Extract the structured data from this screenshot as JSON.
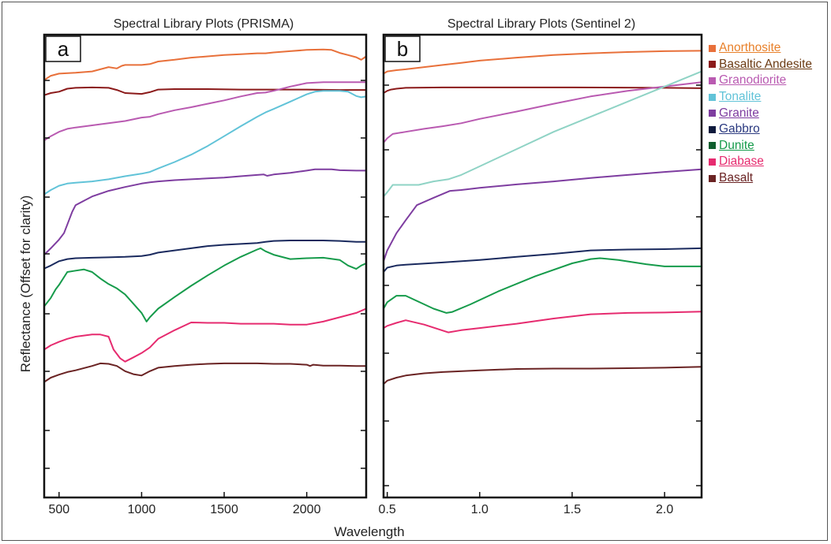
{
  "chart_data": [
    {
      "type": "line",
      "title": "Spectral Library Plots (PRISMA)",
      "panel_label": "a",
      "xlabel": "Wavelength",
      "ylabel": "Reflectance (Offset for clarity)",
      "xlim": [
        410,
        2360
      ],
      "ylim": [
        0,
        10
      ],
      "xticks": [
        500,
        1000,
        1500,
        2000
      ],
      "ytick_count": 8,
      "grid": false,
      "series": [
        {
          "name": "Anorthosite",
          "color": "#e8703a",
          "x": [
            410,
            450,
            500,
            600,
            700,
            750,
            800,
            850,
            880,
            900,
            1000,
            1050,
            1100,
            1200,
            1300,
            1400,
            1500,
            1600,
            1700,
            1750,
            1800,
            1900,
            2000,
            2100,
            2150,
            2200,
            2250,
            2300,
            2330,
            2360
          ],
          "y": [
            9.35,
            9.45,
            9.5,
            9.52,
            9.55,
            9.6,
            9.65,
            9.62,
            9.68,
            9.7,
            9.7,
            9.72,
            9.78,
            9.82,
            9.87,
            9.9,
            9.93,
            9.95,
            9.97,
            9.97,
            9.99,
            10.02,
            10.05,
            10.06,
            10.05,
            9.98,
            9.93,
            9.88,
            9.82,
            9.9
          ]
        },
        {
          "name": "Basaltic Andesite",
          "color": "#8b1a1a",
          "x": [
            410,
            450,
            500,
            550,
            600,
            700,
            800,
            850,
            900,
            1000,
            1050,
            1100,
            1200,
            1400,
            1600,
            1800,
            2000,
            2200,
            2360
          ],
          "y": [
            9.0,
            9.05,
            9.08,
            9.15,
            9.17,
            9.18,
            9.17,
            9.12,
            9.05,
            9.03,
            9.07,
            9.13,
            9.14,
            9.14,
            9.13,
            9.13,
            9.13,
            9.12,
            9.12
          ]
        },
        {
          "name": "Granodiorite",
          "color": "#b95ab1",
          "x": [
            410,
            450,
            500,
            550,
            600,
            700,
            800,
            900,
            1000,
            1050,
            1100,
            1200,
            1300,
            1400,
            1500,
            1600,
            1700,
            1750,
            1800,
            1900,
            2000,
            2100,
            2200,
            2300,
            2360
          ],
          "y": [
            7.95,
            8.05,
            8.15,
            8.22,
            8.25,
            8.3,
            8.35,
            8.4,
            8.48,
            8.5,
            8.56,
            8.65,
            8.72,
            8.8,
            8.88,
            8.97,
            9.05,
            9.06,
            9.1,
            9.2,
            9.28,
            9.3,
            9.3,
            9.3,
            9.3
          ]
        },
        {
          "name": "Tonalite",
          "color": "#61c3d8",
          "x": [
            410,
            450,
            500,
            550,
            600,
            700,
            800,
            900,
            1000,
            1050,
            1100,
            1200,
            1300,
            1400,
            1500,
            1600,
            1700,
            1750,
            1800,
            1900,
            2000,
            2050,
            2100,
            2200,
            2250,
            2300,
            2330,
            2360
          ],
          "y": [
            6.7,
            6.8,
            6.9,
            6.95,
            6.97,
            7.0,
            7.05,
            7.12,
            7.18,
            7.22,
            7.3,
            7.45,
            7.62,
            7.82,
            8.05,
            8.28,
            8.5,
            8.6,
            8.68,
            8.85,
            9.02,
            9.08,
            9.1,
            9.1,
            9.08,
            8.98,
            8.95,
            8.97
          ]
        },
        {
          "name": "Granite",
          "color": "#7e3da0",
          "x": [
            410,
            450,
            500,
            530,
            550,
            580,
            600,
            650,
            700,
            800,
            900,
            1000,
            1050,
            1100,
            1200,
            1300,
            1400,
            1500,
            1600,
            1700,
            1740,
            1760,
            1800,
            1900,
            2000,
            2050,
            2100,
            2150,
            2200,
            2300,
            2360
          ],
          "y": [
            5.3,
            5.45,
            5.65,
            5.8,
            6.0,
            6.3,
            6.45,
            6.55,
            6.65,
            6.78,
            6.87,
            6.95,
            6.98,
            7.0,
            7.03,
            7.05,
            7.07,
            7.09,
            7.12,
            7.15,
            7.16,
            7.13,
            7.16,
            7.2,
            7.25,
            7.28,
            7.28,
            7.28,
            7.26,
            7.25,
            7.25
          ]
        },
        {
          "name": "Gabbro",
          "color": "#1a2a5e",
          "x": [
            410,
            450,
            500,
            550,
            600,
            700,
            800,
            900,
            1000,
            1050,
            1100,
            1200,
            1300,
            1400,
            1500,
            1600,
            1700,
            1750,
            1800,
            1900,
            2000,
            2100,
            2200,
            2300,
            2360
          ],
          "y": [
            4.98,
            5.05,
            5.15,
            5.2,
            5.22,
            5.23,
            5.24,
            5.25,
            5.27,
            5.3,
            5.35,
            5.4,
            5.45,
            5.5,
            5.53,
            5.55,
            5.57,
            5.6,
            5.62,
            5.63,
            5.63,
            5.63,
            5.62,
            5.6,
            5.6
          ]
        },
        {
          "name": "Dunite",
          "color": "#169b4b",
          "x": [
            410,
            450,
            480,
            500,
            550,
            600,
            650,
            700,
            750,
            800,
            850,
            900,
            1000,
            1030,
            1050,
            1100,
            1200,
            1300,
            1400,
            1500,
            1600,
            1700,
            1720,
            1750,
            1800,
            1900,
            2000,
            2100,
            2200,
            2250,
            2300,
            2330,
            2360
          ],
          "y": [
            4.1,
            4.3,
            4.5,
            4.6,
            4.9,
            4.93,
            4.96,
            4.9,
            4.75,
            4.62,
            4.52,
            4.38,
            3.95,
            3.75,
            3.85,
            4.05,
            4.32,
            4.58,
            4.82,
            5.05,
            5.25,
            5.42,
            5.45,
            5.38,
            5.3,
            5.2,
            5.22,
            5.23,
            5.18,
            5.05,
            4.97,
            5.05,
            5.1
          ]
        },
        {
          "name": "Diabase",
          "color": "#e62b6f",
          "x": [
            410,
            450,
            500,
            550,
            600,
            700,
            750,
            800,
            830,
            870,
            900,
            950,
            1000,
            1050,
            1100,
            1200,
            1300,
            1400,
            1500,
            1600,
            1700,
            1800,
            1900,
            2000,
            2100,
            2200,
            2300,
            2360
          ],
          "y": [
            3.1,
            3.2,
            3.28,
            3.35,
            3.4,
            3.45,
            3.45,
            3.4,
            3.1,
            2.9,
            2.82,
            2.92,
            3.02,
            3.15,
            3.35,
            3.55,
            3.73,
            3.72,
            3.72,
            3.7,
            3.7,
            3.7,
            3.68,
            3.68,
            3.75,
            3.85,
            3.95,
            4.05
          ]
        },
        {
          "name": "Basalt",
          "color": "#6a2323",
          "x": [
            410,
            450,
            500,
            550,
            600,
            700,
            750,
            800,
            850,
            900,
            950,
            1000,
            1050,
            1100,
            1200,
            1300,
            1400,
            1500,
            1600,
            1700,
            1800,
            1900,
            2000,
            2020,
            2040,
            2100,
            2200,
            2300,
            2360
          ],
          "y": [
            2.35,
            2.45,
            2.52,
            2.58,
            2.62,
            2.72,
            2.78,
            2.77,
            2.72,
            2.6,
            2.53,
            2.5,
            2.6,
            2.68,
            2.72,
            2.75,
            2.77,
            2.78,
            2.78,
            2.78,
            2.77,
            2.77,
            2.75,
            2.72,
            2.75,
            2.73,
            2.73,
            2.72,
            2.72
          ]
        }
      ]
    },
    {
      "type": "line",
      "title": "Spectral Library Plots (Sentinel 2)",
      "panel_label": "b",
      "xlabel": "Wavelength",
      "xlim": [
        0.48,
        2.2
      ],
      "ylim": [
        0,
        10
      ],
      "xticks": [
        0.5,
        1.0,
        1.5,
        2.0
      ],
      "xtick_labels": [
        "0.5",
        "1.0",
        "1.5",
        "2.0"
      ],
      "ytick_count": 8,
      "grid": false,
      "series": [
        {
          "name": "Anorthosite",
          "color": "#e8703a",
          "x": [
            0.48,
            0.5,
            0.55,
            0.6,
            0.7,
            0.8,
            0.9,
            1.0,
            1.2,
            1.4,
            1.6,
            1.8,
            2.0,
            2.2
          ],
          "y": [
            9.5,
            9.55,
            9.58,
            9.6,
            9.65,
            9.7,
            9.75,
            9.8,
            9.87,
            9.93,
            9.97,
            10.0,
            10.02,
            10.03
          ]
        },
        {
          "name": "Basaltic Andesite",
          "color": "#8b1a1a",
          "x": [
            0.48,
            0.5,
            0.52,
            0.55,
            0.6,
            0.8,
            1.0,
            1.5,
            2.0,
            2.2
          ],
          "y": [
            9.05,
            9.1,
            9.13,
            9.15,
            9.17,
            9.18,
            9.18,
            9.18,
            9.17,
            9.16
          ]
        },
        {
          "name": "Granodiorite",
          "color": "#b95ab1",
          "x": [
            0.48,
            0.5,
            0.53,
            0.6,
            0.7,
            0.8,
            0.9,
            1.0,
            1.2,
            1.4,
            1.6,
            1.8,
            2.0,
            2.2
          ],
          "y": [
            7.9,
            8.0,
            8.1,
            8.15,
            8.22,
            8.28,
            8.35,
            8.45,
            8.62,
            8.8,
            8.97,
            9.1,
            9.2,
            9.3
          ]
        },
        {
          "name": "Tonalite",
          "color": "#8fd3c5",
          "x": [
            0.48,
            0.5,
            0.53,
            0.56,
            0.6,
            0.67,
            0.75,
            0.83,
            0.9,
            1.0,
            1.2,
            1.4,
            1.6,
            1.8,
            2.0,
            2.2
          ],
          "y": [
            6.65,
            6.75,
            6.92,
            6.92,
            6.92,
            6.92,
            7.0,
            7.05,
            7.15,
            7.35,
            7.75,
            8.15,
            8.5,
            8.85,
            9.2,
            9.55
          ]
        },
        {
          "name": "Granite",
          "color": "#7e3da0",
          "x": [
            0.48,
            0.5,
            0.55,
            0.6,
            0.66,
            0.75,
            0.84,
            0.9,
            1.0,
            1.2,
            1.4,
            1.6,
            1.8,
            2.0,
            2.2
          ],
          "y": [
            5.15,
            5.4,
            5.8,
            6.1,
            6.45,
            6.62,
            6.78,
            6.8,
            6.85,
            6.93,
            7.0,
            7.08,
            7.15,
            7.22,
            7.28
          ]
        },
        {
          "name": "Gabbro",
          "color": "#1a2a5e",
          "x": [
            0.48,
            0.5,
            0.55,
            0.6,
            0.8,
            1.0,
            1.2,
            1.4,
            1.6,
            1.8,
            2.0,
            2.2
          ],
          "y": [
            4.9,
            5.0,
            5.05,
            5.07,
            5.12,
            5.18,
            5.25,
            5.32,
            5.4,
            5.42,
            5.43,
            5.45
          ]
        },
        {
          "name": "Dunite",
          "color": "#169b4b",
          "x": [
            0.48,
            0.5,
            0.55,
            0.6,
            0.7,
            0.75,
            0.82,
            0.85,
            0.95,
            1.1,
            1.3,
            1.5,
            1.6,
            1.65,
            1.75,
            1.9,
            2.0,
            2.2
          ],
          "y": [
            4.05,
            4.2,
            4.35,
            4.35,
            4.15,
            4.05,
            3.95,
            3.97,
            4.15,
            4.45,
            4.8,
            5.1,
            5.2,
            5.22,
            5.18,
            5.08,
            5.03,
            5.03
          ]
        },
        {
          "name": "Diabase",
          "color": "#e62b6f",
          "x": [
            0.48,
            0.5,
            0.55,
            0.6,
            0.7,
            0.83,
            0.9,
            1.0,
            1.2,
            1.4,
            1.6,
            1.8,
            2.0,
            2.2
          ],
          "y": [
            3.6,
            3.65,
            3.72,
            3.78,
            3.68,
            3.5,
            3.55,
            3.6,
            3.7,
            3.82,
            3.92,
            3.95,
            3.96,
            3.98
          ]
        },
        {
          "name": "Basalt",
          "color": "#6a2323",
          "x": [
            0.48,
            0.5,
            0.55,
            0.6,
            0.7,
            0.8,
            1.0,
            1.2,
            1.4,
            1.6,
            1.8,
            2.0,
            2.2
          ],
          "y": [
            2.3,
            2.38,
            2.45,
            2.5,
            2.55,
            2.58,
            2.62,
            2.65,
            2.66,
            2.66,
            2.67,
            2.68,
            2.7
          ]
        }
      ]
    }
  ],
  "legend": {
    "placement": "right",
    "items": [
      {
        "label": "Anorthosite",
        "color": "#e8703a",
        "text_color": "#e8802a"
      },
      {
        "label": "Basaltic Andesite",
        "color": "#8b1a1a",
        "text_color": "#6b3a12"
      },
      {
        "label": "Granodiorite",
        "color": "#b95ab1",
        "text_color": "#b95ab1"
      },
      {
        "label": "Tonalite",
        "color": "#61c3d8",
        "text_color": "#61c3d8"
      },
      {
        "label": "Granite",
        "color": "#7e3da0",
        "text_color": "#7e3da0"
      },
      {
        "label": "Gabbro",
        "color": "#0f1a3d",
        "text_color": "#2b3a80"
      },
      {
        "label": "Dunite",
        "color": "#0f5e2e",
        "text_color": "#169b4b"
      },
      {
        "label": "Diabase",
        "color": "#e62b6f",
        "text_color": "#e62b6f"
      },
      {
        "label": "Basalt",
        "color": "#6a2323",
        "text_color": "#6a2323"
      }
    ]
  }
}
